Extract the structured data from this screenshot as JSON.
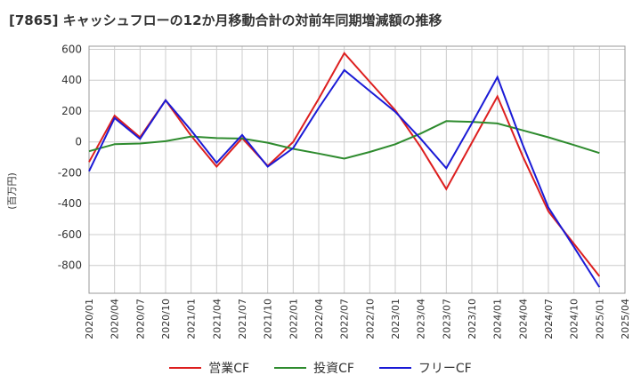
{
  "title": "[7865]  キャッシュフローの12か月移動合計の対前年同期増減額の推移",
  "colors": {
    "operating": "#dd1f1f",
    "investing": "#2e8b2e",
    "free": "#1a1ad6",
    "grid": "#cccccc"
  },
  "chart_data": {
    "type": "line",
    "ylabel": "(百万円)",
    "ylim": [
      -980,
      620
    ],
    "yticks": [
      600,
      400,
      200,
      0,
      -200,
      -400,
      -600,
      -800
    ],
    "yticklabels": [
      "600",
      "400",
      "200",
      "0",
      "-200",
      "-400",
      "-600",
      "-800"
    ],
    "categories": [
      "2020/01",
      "2020/04",
      "2020/07",
      "2020/10",
      "2021/01",
      "2021/04",
      "2021/07",
      "2021/10",
      "2022/01",
      "2022/04",
      "2022/07",
      "2022/10",
      "2023/01",
      "2023/04",
      "2023/07",
      "2023/10",
      "2024/01",
      "2024/04",
      "2024/07",
      "2024/10",
      "2025/01",
      "2025/04"
    ],
    "series": [
      {
        "name": "営業CF",
        "color_key": "operating",
        "values": [
          -130,
          170,
          30,
          270,
          40,
          -160,
          25,
          -155,
          0,
          280,
          575,
          390,
          205,
          -35,
          -305,
          -5,
          295,
          -95,
          -450,
          -660,
          -870,
          null
        ]
      },
      {
        "name": "投資CF",
        "color_key": "investing",
        "values": [
          -60,
          -15,
          -10,
          5,
          35,
          25,
          22,
          -5,
          -45,
          -75,
          -108,
          -65,
          -15,
          55,
          135,
          130,
          120,
          75,
          30,
          -20,
          -72,
          null
        ]
      },
      {
        "name": "フリーCF",
        "color_key": "free",
        "values": [
          -190,
          155,
          20,
          270,
          75,
          -135,
          45,
          -160,
          -40,
          220,
          465,
          330,
          195,
          20,
          -170,
          120,
          420,
          -20,
          -425,
          -680,
          -940,
          null
        ]
      }
    ],
    "grid": true,
    "legend": "bottom"
  }
}
